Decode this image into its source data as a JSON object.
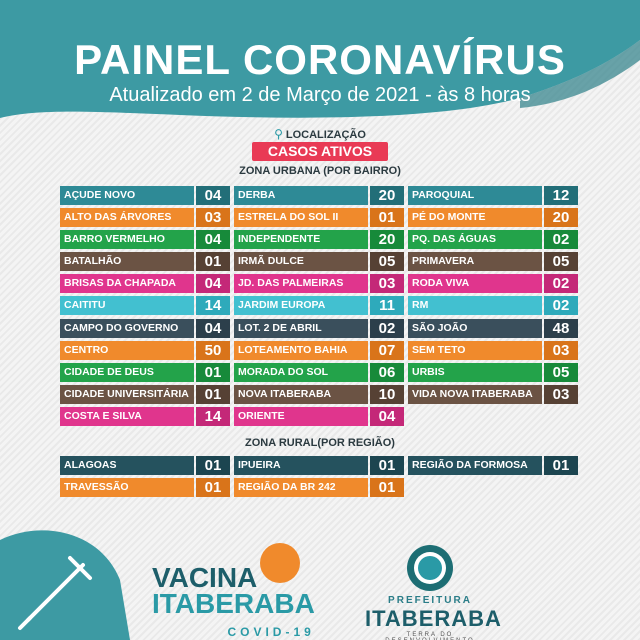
{
  "title": "PAINEL CORONAVÍRUS",
  "subtitle": "Atualizado em 2 de Março de 2021 - às 8 horas",
  "location_label": "LOCALIZAÇÃO",
  "active_cases_label": "CASOS ATIVOS",
  "urban_zone_title": "ZONA URBANA (POR BAIRRO)",
  "rural_zone_title": "ZONA RURAL(POR REGIÃO)",
  "colors": {
    "teal": "#2e8a96",
    "orange": "#f08a2c",
    "green": "#23a34a",
    "brown": "#6b5344",
    "pink": "#e0358d",
    "cyan": "#42c0d0",
    "dark": "#3a4f5c",
    "red": "#e6283b",
    "navy": "#25525e"
  },
  "urban": {
    "col1": [
      {
        "name": "AÇUDE NOVO",
        "count": "04",
        "color": "teal"
      },
      {
        "name": "ALTO DAS ÁRVORES",
        "count": "03",
        "color": "orange"
      },
      {
        "name": "BARRO VERMELHO",
        "count": "04",
        "color": "green"
      },
      {
        "name": "BATALHÃO",
        "count": "01",
        "color": "brown"
      },
      {
        "name": "BRISAS DA CHAPADA",
        "count": "04",
        "color": "pink"
      },
      {
        "name": "CAITITU",
        "count": "14",
        "color": "cyan"
      },
      {
        "name": "CAMPO DO GOVERNO",
        "count": "04",
        "color": "dark"
      },
      {
        "name": "CENTRO",
        "count": "50",
        "color": "orange"
      },
      {
        "name": "CIDADE DE DEUS",
        "count": "01",
        "color": "green"
      },
      {
        "name": "CIDADE UNIVERSITÁRIA",
        "count": "01",
        "color": "brown"
      },
      {
        "name": "COSTA E SILVA",
        "count": "14",
        "color": "pink"
      }
    ],
    "col2": [
      {
        "name": "DERBA",
        "count": "20",
        "color": "teal"
      },
      {
        "name": "ESTRELA DO SOL II",
        "count": "01",
        "color": "orange"
      },
      {
        "name": "INDEPENDENTE",
        "count": "20",
        "color": "green"
      },
      {
        "name": "IRMÃ DULCE",
        "count": "05",
        "color": "brown"
      },
      {
        "name": "JD. DAS PALMEIRAS",
        "count": "03",
        "color": "pink"
      },
      {
        "name": "JARDIM EUROPA",
        "count": "11",
        "color": "cyan"
      },
      {
        "name": "LOT. 2 DE ABRIL",
        "count": "02",
        "color": "dark"
      },
      {
        "name": "LOTEAMENTO BAHIA",
        "count": "07",
        "color": "orange"
      },
      {
        "name": "MORADA DO SOL",
        "count": "06",
        "color": "green"
      },
      {
        "name": "NOVA ITABERABA",
        "count": "10",
        "color": "brown"
      },
      {
        "name": "ORIENTE",
        "count": "04",
        "color": "pink"
      }
    ],
    "col3": [
      {
        "name": "PAROQUIAL",
        "count": "12",
        "color": "teal"
      },
      {
        "name": "PÉ DO MONTE",
        "count": "20",
        "color": "orange"
      },
      {
        "name": "PQ. DAS ÁGUAS",
        "count": "02",
        "color": "green"
      },
      {
        "name": "PRIMAVERA",
        "count": "05",
        "color": "brown"
      },
      {
        "name": "RODA VIVA",
        "count": "02",
        "color": "pink"
      },
      {
        "name": "RM",
        "count": "02",
        "color": "cyan"
      },
      {
        "name": "SÃO JOÃO",
        "count": "48",
        "color": "dark"
      },
      {
        "name": "SEM TETO",
        "count": "03",
        "color": "orange"
      },
      {
        "name": "URBIS",
        "count": "05",
        "color": "green"
      },
      {
        "name": "VIDA NOVA ITABERABA",
        "count": "03",
        "color": "brown"
      }
    ]
  },
  "rural": {
    "col1": [
      {
        "name": "ALAGOAS",
        "count": "01",
        "color": "navy"
      },
      {
        "name": "TRAVESSÃO",
        "count": "01",
        "color": "orange"
      }
    ],
    "col2": [
      {
        "name": "IPUEIRA",
        "count": "01",
        "color": "navy"
      },
      {
        "name": "REGIÃO DA BR 242",
        "count": "01",
        "color": "orange"
      }
    ],
    "col3": [
      {
        "name": "REGIÃO DA FORMOSA",
        "count": "01",
        "color": "navy"
      }
    ]
  },
  "footer": {
    "vacina_line1": "VACINA",
    "vacina_line2": "ITABERABA",
    "vacina_line3": "COVID-19",
    "pref_line1": "PREFEITURA",
    "pref_line2": "ITABERABA",
    "pref_line3": "TERRA DO DESENVOLVIMENTO",
    "seal_icon": "city-seal-icon",
    "vaccine_icon": "vaccine-syringe-icon"
  }
}
